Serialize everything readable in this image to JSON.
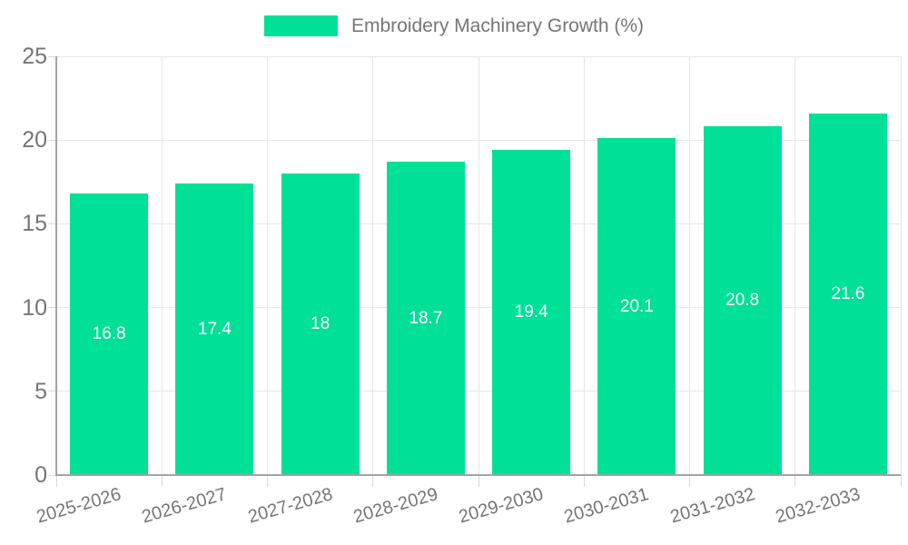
{
  "legend": {
    "label": "Embroidery Machinery Growth (%)"
  },
  "chart_data": {
    "type": "bar",
    "title": "Embroidery Machinery Growth (%)",
    "categories": [
      "2025-2026",
      "2026-2027",
      "2027-2028",
      "2028-2029",
      "2029-2030",
      "2030-2031",
      "2031-2032",
      "2032-2033"
    ],
    "values": [
      16.8,
      17.4,
      18,
      18.7,
      19.4,
      20.1,
      20.8,
      21.6
    ],
    "value_labels": [
      "16.8",
      "17.4",
      "18",
      "18.7",
      "19.4",
      "20.1",
      "20.8",
      "21.6"
    ],
    "xlabel": "",
    "ylabel": "",
    "ylim": [
      0,
      25
    ],
    "yticks": [
      0,
      5,
      10,
      15,
      20,
      25
    ],
    "grid": true,
    "legend_position": "top-center",
    "bar_label_position": "inside-center",
    "colors": {
      "bar": "#00E096",
      "bar_value_text": "#ffffff",
      "axis_line": "#a3a3a3",
      "grid_line": "#e6e6e6",
      "tick_line": "#d9d9d9",
      "tick_text": "#757575",
      "legend_text": "#757575",
      "background": "#ffffff"
    }
  }
}
